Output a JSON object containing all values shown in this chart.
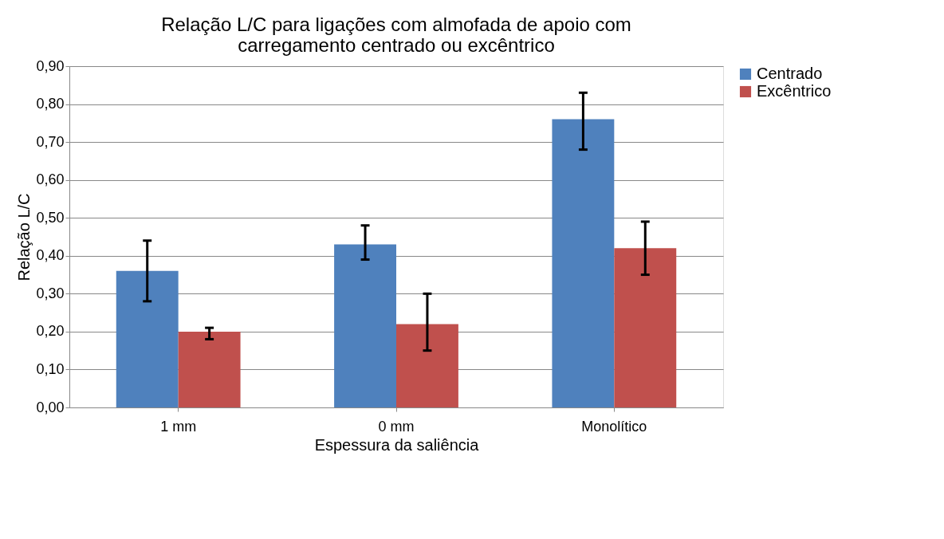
{
  "chart_data": {
    "type": "bar",
    "title": [
      "Relação L/C para ligações com almofada de apoio com",
      "carregamento centrado ou excêntrico"
    ],
    "xlabel": "Espessura da saliência",
    "ylabel": "Relação L/C",
    "categories": [
      "1 mm",
      "0 mm",
      "Monolítico"
    ],
    "series": [
      {
        "name": "Centrado",
        "color": "#4f81bd",
        "values": [
          0.36,
          0.43,
          0.76
        ],
        "errors": [
          [
            0.28,
            0.44
          ],
          [
            0.39,
            0.48
          ],
          [
            0.68,
            0.83
          ]
        ]
      },
      {
        "name": "Excêntrico",
        "color": "#c0504d",
        "values": [
          0.2,
          0.22,
          0.42
        ],
        "errors": [
          [
            0.18,
            0.21
          ],
          [
            0.15,
            0.3
          ],
          [
            0.35,
            0.49
          ]
        ]
      }
    ],
    "ylim": [
      0,
      0.9
    ],
    "yticks": [
      {
        "value": 0,
        "label": "0,00"
      },
      {
        "value": 0.1,
        "label": "0,10"
      },
      {
        "value": 0.2,
        "label": "0,20"
      },
      {
        "value": 0.3,
        "label": "0,30"
      },
      {
        "value": 0.4,
        "label": "0,40"
      },
      {
        "value": 0.5,
        "label": "0,50"
      },
      {
        "value": 0.6,
        "label": "0,60"
      },
      {
        "value": 0.7,
        "label": "0,70"
      },
      {
        "value": 0.8,
        "label": "0,80"
      },
      {
        "value": 0.9,
        "label": "0,90"
      }
    ],
    "grid": "y",
    "legend": "right"
  }
}
